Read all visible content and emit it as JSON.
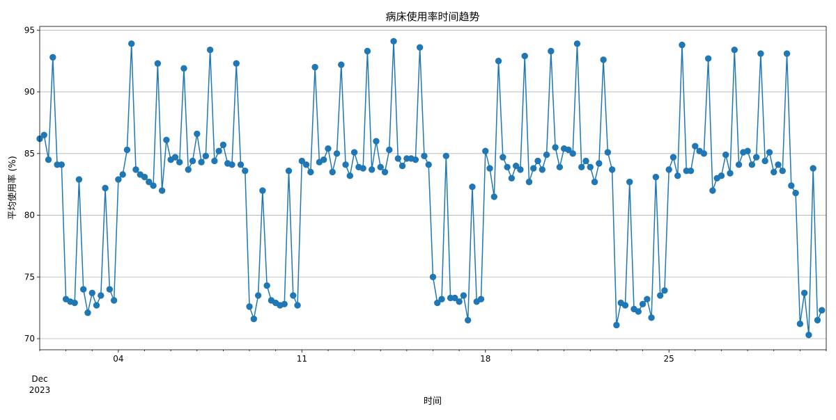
{
  "chart_data": {
    "type": "line",
    "title": "病床使用率时间趋势",
    "xlabel": "时间",
    "ylabel": "平均使用率 (%)",
    "x_start": "2023-12-01 00:00",
    "x_end": "2023-12-31 00:00",
    "x_step_hours": 4,
    "ylim": [
      69.1,
      95.3
    ],
    "yticks": [
      70,
      75,
      80,
      85,
      90,
      95
    ],
    "xticks_major": [
      {
        "date": "2023-12-04",
        "label": "04"
      },
      {
        "date": "2023-12-11",
        "label": "11"
      },
      {
        "date": "2023-12-18",
        "label": "18"
      },
      {
        "date": "2023-12-25",
        "label": "25"
      }
    ],
    "x_offset_label": [
      "Dec",
      "2023"
    ],
    "grid": "horizontal",
    "series": [
      {
        "color": "#1f77b4",
        "values": [
          86.2,
          86.5,
          84.5,
          92.8,
          84.1,
          84.1,
          73.2,
          73.0,
          72.9,
          82.9,
          74.0,
          72.1,
          73.7,
          72.7,
          73.5,
          82.2,
          74.0,
          73.1,
          82.9,
          83.3,
          85.3,
          93.9,
          83.7,
          83.3,
          83.1,
          82.7,
          82.4,
          92.3,
          82.0,
          86.1,
          84.5,
          84.7,
          84.3,
          91.9,
          83.7,
          84.4,
          86.6,
          84.3,
          84.8,
          93.4,
          84.4,
          85.2,
          85.7,
          84.2,
          84.1,
          92.3,
          84.1,
          83.6,
          72.6,
          71.6,
          73.5,
          82.0,
          74.3,
          73.1,
          72.9,
          72.7,
          72.8,
          83.6,
          73.5,
          72.7,
          84.4,
          84.1,
          83.5,
          92.0,
          84.3,
          84.5,
          85.4,
          83.5,
          85.0,
          92.2,
          84.1,
          83.2,
          85.1,
          83.9,
          83.8,
          93.3,
          83.7,
          86.0,
          83.9,
          83.5,
          85.3,
          94.1,
          84.6,
          84.0,
          84.6,
          84.6,
          84.5,
          93.6,
          84.8,
          84.1,
          75.0,
          72.9,
          73.2,
          84.8,
          73.3,
          73.3,
          73.0,
          73.5,
          71.5,
          82.3,
          73.0,
          73.2,
          85.2,
          83.8,
          81.5,
          92.5,
          84.7,
          83.9,
          83.0,
          84.0,
          83.7,
          92.9,
          82.7,
          83.8,
          84.4,
          83.7,
          84.9,
          93.3,
          85.5,
          83.9,
          85.4,
          85.3,
          85.0,
          93.9,
          83.9,
          84.4,
          83.9,
          82.7,
          84.2,
          92.6,
          85.1,
          83.7,
          71.1,
          72.9,
          72.7,
          82.7,
          72.4,
          72.2,
          72.8,
          73.2,
          71.7,
          83.1,
          73.5,
          73.9,
          83.7,
          84.7,
          83.2,
          93.8,
          83.6,
          83.6,
          85.6,
          85.2,
          85.0,
          92.7,
          82.0,
          83.0,
          83.2,
          84.9,
          83.4,
          93.4,
          84.1,
          85.1,
          85.2,
          84.1,
          84.7,
          93.1,
          84.4,
          85.1,
          83.5,
          84.1,
          83.6,
          93.1,
          82.4,
          81.8,
          71.2,
          73.7,
          70.3,
          83.8,
          71.5,
          72.3
        ]
      }
    ]
  }
}
